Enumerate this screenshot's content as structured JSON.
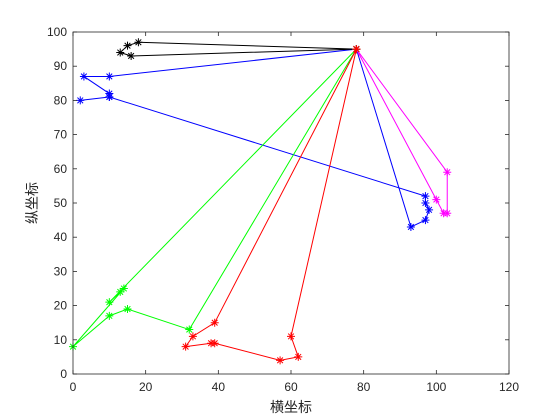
{
  "chart_data": {
    "type": "line",
    "xlabel": "横坐标",
    "ylabel": "纵坐标",
    "xlim": [
      0,
      120
    ],
    "ylim": [
      0,
      100
    ],
    "xticks": [
      0,
      20,
      40,
      60,
      80,
      100,
      120
    ],
    "yticks": [
      0,
      10,
      20,
      30,
      40,
      50,
      60,
      70,
      80,
      90,
      100
    ],
    "grid": false,
    "marker": "asterisk",
    "series": [
      {
        "color": "#0000ff",
        "x": [
          78,
          93,
          97,
          98,
          97,
          97,
          10,
          2,
          10,
          10,
          3,
          10,
          78
        ],
        "y": [
          95,
          43,
          45,
          48,
          50,
          52,
          81,
          80,
          81,
          82,
          87,
          87,
          95
        ]
      },
      {
        "color": "#000000",
        "x": [
          78,
          16,
          13,
          15,
          18,
          78
        ],
        "y": [
          95,
          93,
          94,
          96,
          97,
          95
        ]
      },
      {
        "color": "#ff00ff",
        "x": [
          78,
          103,
          103,
          102,
          100,
          78
        ],
        "y": [
          95,
          59,
          47,
          47,
          51,
          95
        ]
      },
      {
        "color": "#00ff00",
        "x": [
          78,
          32,
          15,
          10,
          0,
          14,
          13,
          10,
          78
        ],
        "y": [
          95,
          13,
          19,
          17,
          8,
          25,
          24,
          21,
          95
        ]
      },
      {
        "color": "#ff0000",
        "x": [
          78,
          60,
          62,
          57,
          39,
          38,
          31,
          33,
          39,
          78
        ],
        "y": [
          95,
          11,
          5,
          4,
          9,
          9,
          8,
          11,
          15,
          95
        ]
      }
    ]
  }
}
